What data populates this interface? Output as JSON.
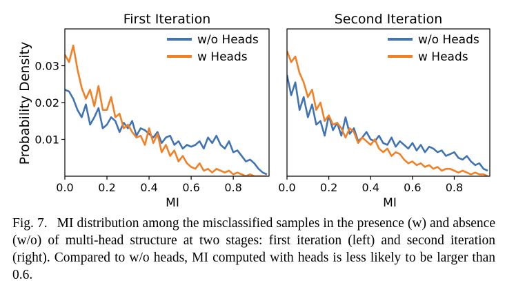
{
  "figure": {
    "caption_label": "Fig. 7.",
    "caption_text": "MI distribution among the misclassified samples in the presence (w) and absence (w/o) of multi-head structure at two stages: first iteration (left) and second iteration (right). Compared to w/o heads, MI computed with heads is less likely to be larger than 0.6."
  },
  "colors": {
    "without_heads": "#3f73b5",
    "with_heads": "#f28025"
  },
  "chart_data": [
    {
      "type": "line",
      "title": "First Iteration",
      "xlabel": "MI",
      "ylabel": "Probability Density",
      "xlim": [
        0,
        0.97
      ],
      "ylim": [
        0,
        0.04
      ],
      "xticks": [
        "0.0",
        "0.2",
        "0.4",
        "0.6",
        "0.8"
      ],
      "yticks": [
        "0.01",
        "0.02",
        "0.03"
      ],
      "grid": false,
      "legend": "top-right",
      "series": [
        {
          "name": "w/o Heads",
          "x": [
            0.0,
            0.02,
            0.04,
            0.06,
            0.08,
            0.1,
            0.12,
            0.14,
            0.16,
            0.18,
            0.2,
            0.22,
            0.24,
            0.26,
            0.28,
            0.3,
            0.32,
            0.34,
            0.36,
            0.38,
            0.4,
            0.42,
            0.44,
            0.46,
            0.48,
            0.5,
            0.52,
            0.54,
            0.56,
            0.58,
            0.6,
            0.62,
            0.64,
            0.66,
            0.68,
            0.7,
            0.72,
            0.74,
            0.76,
            0.78,
            0.8,
            0.82,
            0.84,
            0.86,
            0.88,
            0.9,
            0.92,
            0.94,
            0.96
          ],
          "values": [
            0.0235,
            0.023,
            0.021,
            0.018,
            0.016,
            0.0195,
            0.014,
            0.016,
            0.0185,
            0.013,
            0.014,
            0.016,
            0.015,
            0.012,
            0.0145,
            0.013,
            0.015,
            0.011,
            0.013,
            0.0125,
            0.0115,
            0.0105,
            0.012,
            0.009,
            0.0105,
            0.011,
            0.0085,
            0.0095,
            0.0075,
            0.0085,
            0.008,
            0.0085,
            0.0095,
            0.0075,
            0.0105,
            0.009,
            0.011,
            0.0085,
            0.0075,
            0.0095,
            0.0065,
            0.007,
            0.0055,
            0.004,
            0.0045,
            0.0035,
            0.002,
            0.001,
            0.0005
          ]
        },
        {
          "name": "w Heads",
          "x": [
            0.0,
            0.02,
            0.04,
            0.06,
            0.08,
            0.1,
            0.12,
            0.14,
            0.16,
            0.18,
            0.2,
            0.22,
            0.24,
            0.26,
            0.28,
            0.3,
            0.32,
            0.34,
            0.36,
            0.38,
            0.4,
            0.42,
            0.44,
            0.46,
            0.48,
            0.5,
            0.52,
            0.54,
            0.56,
            0.58,
            0.6,
            0.62,
            0.64,
            0.66,
            0.68,
            0.7,
            0.72,
            0.74,
            0.76,
            0.78,
            0.8,
            0.82,
            0.84,
            0.86,
            0.88,
            0.9,
            0.92,
            0.94,
            0.96
          ],
          "values": [
            0.033,
            0.031,
            0.0355,
            0.029,
            0.024,
            0.021,
            0.0235,
            0.019,
            0.0245,
            0.018,
            0.018,
            0.0215,
            0.016,
            0.017,
            0.013,
            0.014,
            0.012,
            0.0105,
            0.011,
            0.0085,
            0.013,
            0.009,
            0.0115,
            0.0065,
            0.0085,
            0.0055,
            0.007,
            0.004,
            0.0055,
            0.0035,
            0.0025,
            0.002,
            0.0035,
            0.0015,
            0.002,
            0.001,
            0.002,
            0.0015,
            0.001,
            0.0015,
            0.0005,
            0.001,
            0.0005,
            0.0,
            0.0005,
            0.0,
            0.0,
            0.0,
            0.0
          ]
        }
      ]
    },
    {
      "type": "line",
      "title": "Second Iteration",
      "xlabel": "MI",
      "ylabel": "",
      "xlim": [
        0,
        0.97
      ],
      "ylim": [
        0,
        0.04
      ],
      "xticks": [
        "0.0",
        "0.2",
        "0.4",
        "0.6",
        "0.8"
      ],
      "yticks": [],
      "grid": false,
      "legend": "top-right",
      "series": [
        {
          "name": "w/o Heads",
          "x": [
            0.0,
            0.02,
            0.04,
            0.06,
            0.08,
            0.1,
            0.12,
            0.14,
            0.16,
            0.18,
            0.2,
            0.22,
            0.24,
            0.26,
            0.28,
            0.3,
            0.32,
            0.34,
            0.36,
            0.38,
            0.4,
            0.42,
            0.44,
            0.46,
            0.48,
            0.5,
            0.52,
            0.54,
            0.56,
            0.58,
            0.6,
            0.62,
            0.64,
            0.66,
            0.68,
            0.7,
            0.72,
            0.74,
            0.76,
            0.78,
            0.8,
            0.82,
            0.84,
            0.86,
            0.88,
            0.9,
            0.92,
            0.94,
            0.96
          ],
          "values": [
            0.0275,
            0.022,
            0.0255,
            0.018,
            0.0215,
            0.016,
            0.0195,
            0.014,
            0.015,
            0.011,
            0.0165,
            0.0125,
            0.0145,
            0.011,
            0.016,
            0.0115,
            0.013,
            0.0095,
            0.0105,
            0.012,
            0.01,
            0.0095,
            0.011,
            0.009,
            0.0085,
            0.0105,
            0.008,
            0.0095,
            0.0085,
            0.0075,
            0.009,
            0.007,
            0.0085,
            0.0065,
            0.008,
            0.0075,
            0.0065,
            0.007,
            0.0055,
            0.006,
            0.0065,
            0.005,
            0.0045,
            0.0055,
            0.004,
            0.003,
            0.0035,
            0.002,
            0.0015
          ]
        },
        {
          "name": "w Heads",
          "x": [
            0.0,
            0.02,
            0.04,
            0.06,
            0.08,
            0.1,
            0.12,
            0.14,
            0.16,
            0.18,
            0.2,
            0.22,
            0.24,
            0.26,
            0.28,
            0.3,
            0.32,
            0.34,
            0.36,
            0.38,
            0.4,
            0.42,
            0.44,
            0.46,
            0.48,
            0.5,
            0.52,
            0.54,
            0.56,
            0.58,
            0.6,
            0.62,
            0.64,
            0.66,
            0.68,
            0.7,
            0.72,
            0.74,
            0.76,
            0.78,
            0.8,
            0.82,
            0.84,
            0.86,
            0.88,
            0.9,
            0.92,
            0.94,
            0.96
          ],
          "values": [
            0.034,
            0.031,
            0.0325,
            0.028,
            0.0255,
            0.0215,
            0.0235,
            0.018,
            0.02,
            0.015,
            0.0165,
            0.014,
            0.0145,
            0.013,
            0.0105,
            0.013,
            0.012,
            0.009,
            0.0105,
            0.0095,
            0.0085,
            0.01,
            0.0075,
            0.0065,
            0.0075,
            0.0055,
            0.0065,
            0.006,
            0.0045,
            0.0035,
            0.004,
            0.003,
            0.0035,
            0.0025,
            0.003,
            0.002,
            0.0025,
            0.0015,
            0.002,
            0.002,
            0.0015,
            0.001,
            0.0015,
            0.001,
            0.0005,
            0.001,
            0.0005,
            0.0005,
            0.0
          ]
        }
      ]
    }
  ]
}
